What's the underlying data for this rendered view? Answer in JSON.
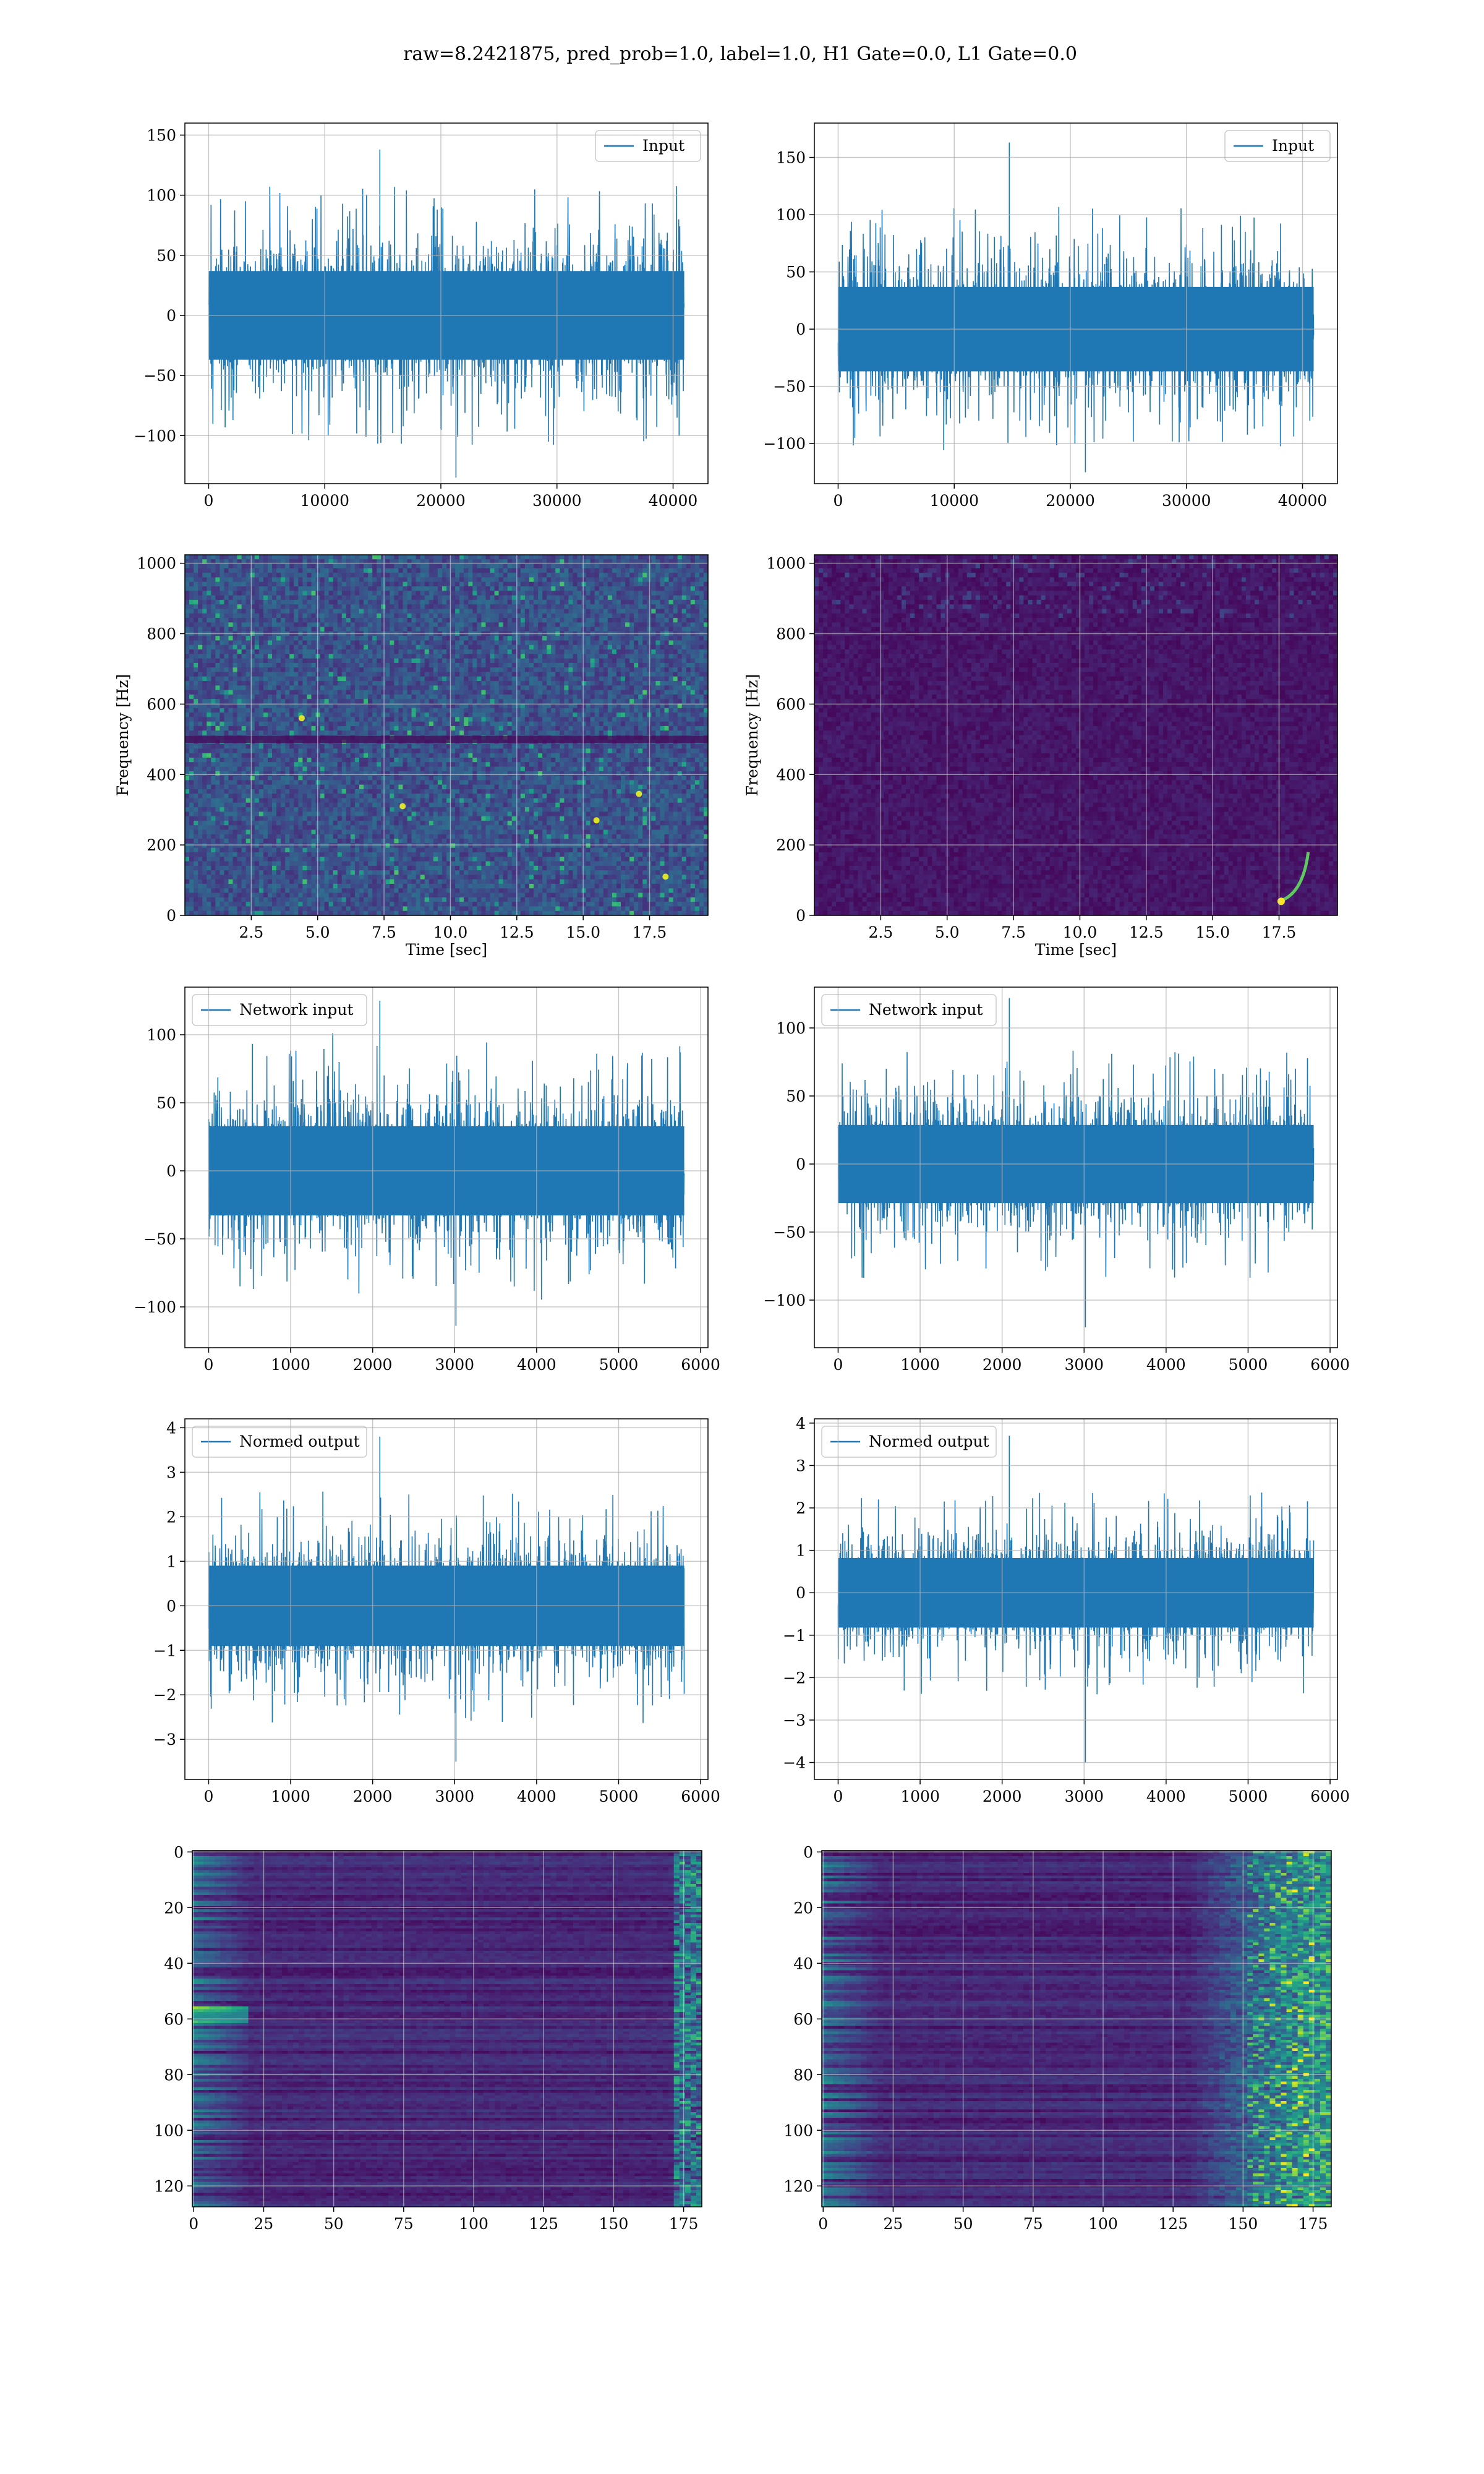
{
  "figure": {
    "title": "raw=8.2421875, pred_prob=1.0, label=1.0, H1 Gate=0.0, L1 Gate=0.0"
  },
  "colors": {
    "series": "#1f77b4",
    "grid": "#b0b0b0",
    "viridis_low": "#440154",
    "viridis_high": "#fde725"
  },
  "chart_data": [
    {
      "type": "line",
      "legend": "Input",
      "legend_loc": "upper right",
      "xlim": [
        -2048,
        43008
      ],
      "ylim": [
        -140,
        160
      ],
      "xticks": [
        0,
        10000,
        20000,
        30000,
        40000
      ],
      "yticks": [
        -100,
        -50,
        0,
        50,
        100,
        150
      ],
      "signal": {
        "x_start": 0,
        "x_end": 40960,
        "band": 45,
        "peak_min": -135,
        "peak_max": 138
      },
      "grid": true
    },
    {
      "type": "line",
      "legend": "Input",
      "legend_loc": "upper right",
      "xlim": [
        -2048,
        43008
      ],
      "ylim": [
        -135,
        180
      ],
      "xticks": [
        0,
        10000,
        20000,
        30000,
        40000
      ],
      "yticks": [
        -100,
        -50,
        0,
        50,
        100,
        150
      ],
      "signal": {
        "x_start": 0,
        "x_end": 40960,
        "band": 45,
        "peak_min": -125,
        "peak_max": 163
      },
      "grid": true
    },
    {
      "type": "heatmap",
      "xlabel": "Time [sec]",
      "ylabel": "Frequency [Hz]",
      "xlim": [
        0,
        19.7
      ],
      "ylim": [
        0,
        1024
      ],
      "xticks": [
        2.5,
        5.0,
        7.5,
        10.0,
        12.5,
        15.0,
        17.5
      ],
      "yticks": [
        0,
        200,
        400,
        600,
        800,
        1000
      ],
      "colormap": "viridis",
      "intensity": "high",
      "grid": true
    },
    {
      "type": "heatmap",
      "xlabel": "Time [sec]",
      "ylabel": "Frequency [Hz]",
      "xlim": [
        0,
        19.7
      ],
      "ylim": [
        0,
        1024
      ],
      "xticks": [
        2.5,
        5.0,
        7.5,
        10.0,
        12.5,
        15.0,
        17.5
      ],
      "yticks": [
        0,
        200,
        400,
        600,
        800,
        1000
      ],
      "colormap": "viridis",
      "intensity": "low",
      "chirp": {
        "t_start": 17.5,
        "t_end": 18.6,
        "f_start": 40,
        "f_end": 180
      },
      "grid": true
    },
    {
      "type": "line",
      "legend": "Network input",
      "legend_loc": "upper left",
      "xlim": [
        -290,
        6090
      ],
      "ylim": [
        -130,
        135
      ],
      "xticks": [
        0,
        1000,
        2000,
        3000,
        4000,
        5000,
        6000
      ],
      "yticks": [
        -100,
        -50,
        0,
        50,
        100
      ],
      "signal": {
        "x_start": 0,
        "x_end": 5800,
        "band": 40,
        "peak_min": -114,
        "peak_max": 125
      },
      "grid": true
    },
    {
      "type": "line",
      "legend": "Network input",
      "legend_loc": "upper left",
      "xlim": [
        -290,
        6090
      ],
      "ylim": [
        -135,
        130
      ],
      "xticks": [
        0,
        1000,
        2000,
        3000,
        4000,
        5000,
        6000
      ],
      "yticks": [
        -100,
        -50,
        0,
        50,
        100
      ],
      "signal": {
        "x_start": 0,
        "x_end": 5800,
        "band": 35,
        "peak_min": -120,
        "peak_max": 122
      },
      "grid": true
    },
    {
      "type": "line",
      "legend": "Normed output",
      "legend_loc": "upper left",
      "xlim": [
        -290,
        6090
      ],
      "ylim": [
        -3.9,
        4.2
      ],
      "xticks": [
        0,
        1000,
        2000,
        3000,
        4000,
        5000,
        6000
      ],
      "yticks": [
        -3,
        -2,
        -1,
        0,
        1,
        2,
        3,
        4
      ],
      "signal": {
        "x_start": 0,
        "x_end": 5800,
        "band": 1.1,
        "peak_min": -3.5,
        "peak_max": 3.8
      },
      "grid": true
    },
    {
      "type": "line",
      "legend": "Normed output",
      "legend_loc": "upper left",
      "xlim": [
        -290,
        6090
      ],
      "ylim": [
        -4.4,
        4.1
      ],
      "xticks": [
        0,
        1000,
        2000,
        3000,
        4000,
        5000,
        6000
      ],
      "yticks": [
        -4,
        -3,
        -2,
        -1,
        0,
        1,
        2,
        3,
        4
      ],
      "signal": {
        "x_start": 0,
        "x_end": 5800,
        "band": 1.0,
        "peak_min": -4.0,
        "peak_max": 3.7
      },
      "grid": true
    },
    {
      "type": "heatmap",
      "xlim": [
        -0.5,
        181.5
      ],
      "ylim": [
        127.5,
        -0.5
      ],
      "xticks": [
        0,
        25,
        50,
        75,
        100,
        125,
        150,
        175
      ],
      "yticks": [
        0,
        20,
        40,
        60,
        80,
        100,
        120
      ],
      "colormap": "viridis",
      "pattern": "feature-map-left",
      "grid": true
    },
    {
      "type": "heatmap",
      "xlim": [
        -0.5,
        181.5
      ],
      "ylim": [
        127.5,
        -0.5
      ],
      "xticks": [
        0,
        25,
        50,
        75,
        100,
        125,
        150,
        175
      ],
      "yticks": [
        0,
        20,
        40,
        60,
        80,
        100,
        120
      ],
      "colormap": "viridis",
      "pattern": "feature-map-right",
      "grid": true
    }
  ]
}
